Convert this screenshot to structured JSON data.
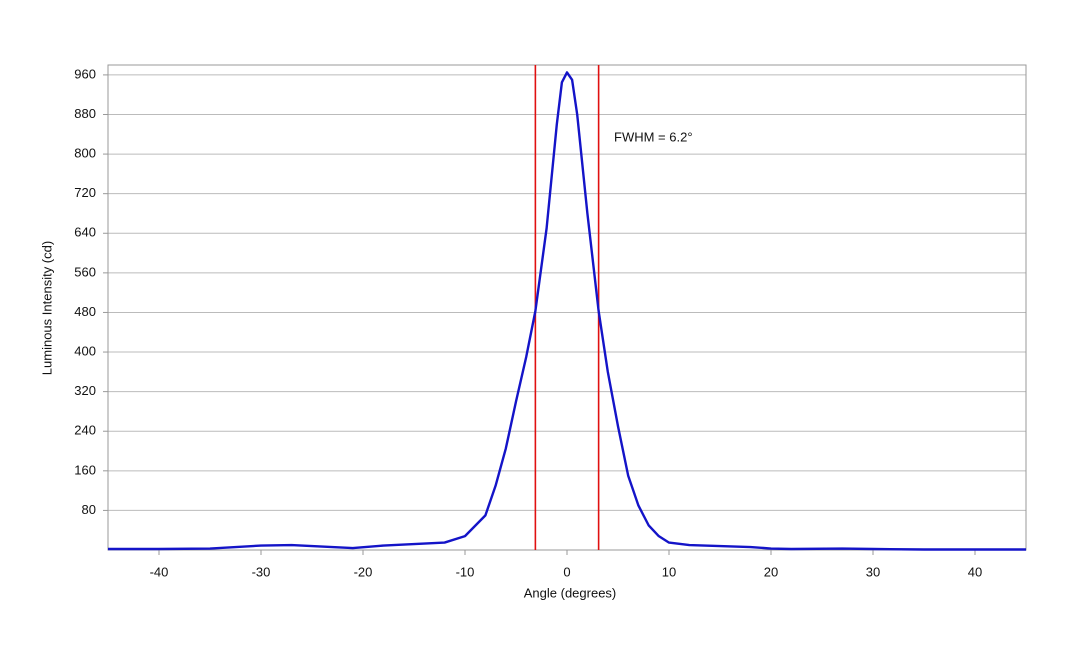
{
  "chart_data": {
    "type": "line",
    "x_label": "Angle (degrees)",
    "y_label": "Luminous Intensity (cd)",
    "annotation": "FWHM = 6.2°",
    "xlim": [
      -45,
      45
    ],
    "ylim": [
      0,
      980
    ],
    "xticks": [
      -40,
      -30,
      -20,
      -10,
      0,
      10,
      20,
      30,
      40
    ],
    "yticks": [
      80,
      160,
      240,
      320,
      400,
      480,
      560,
      640,
      720,
      800,
      880,
      960
    ],
    "grid": true,
    "series": [
      {
        "color": "#1414c8",
        "x": [
          -45,
          -40,
          -35,
          -30,
          -27,
          -24,
          -21,
          -18,
          -15,
          -12,
          -10,
          -8,
          -7,
          -6,
          -5,
          -4,
          -3.1,
          -2,
          -1,
          -0.5,
          0,
          0.5,
          1,
          2,
          3.1,
          4,
          5,
          6,
          7,
          8,
          9,
          10,
          12,
          15,
          18,
          20,
          22,
          27,
          30,
          35,
          40,
          45
        ],
        "values": [
          2,
          2,
          3,
          9,
          10,
          7,
          4,
          9,
          12,
          15,
          28,
          70,
          130,
          205,
          300,
          390,
          483,
          650,
          860,
          945,
          965,
          950,
          880,
          680,
          483,
          360,
          250,
          150,
          90,
          50,
          28,
          15,
          10,
          8,
          6,
          3,
          2,
          3,
          2,
          1,
          1,
          1
        ]
      }
    ],
    "vlines": {
      "x": [
        -3.1,
        3.1
      ],
      "color": "#e01010"
    }
  }
}
